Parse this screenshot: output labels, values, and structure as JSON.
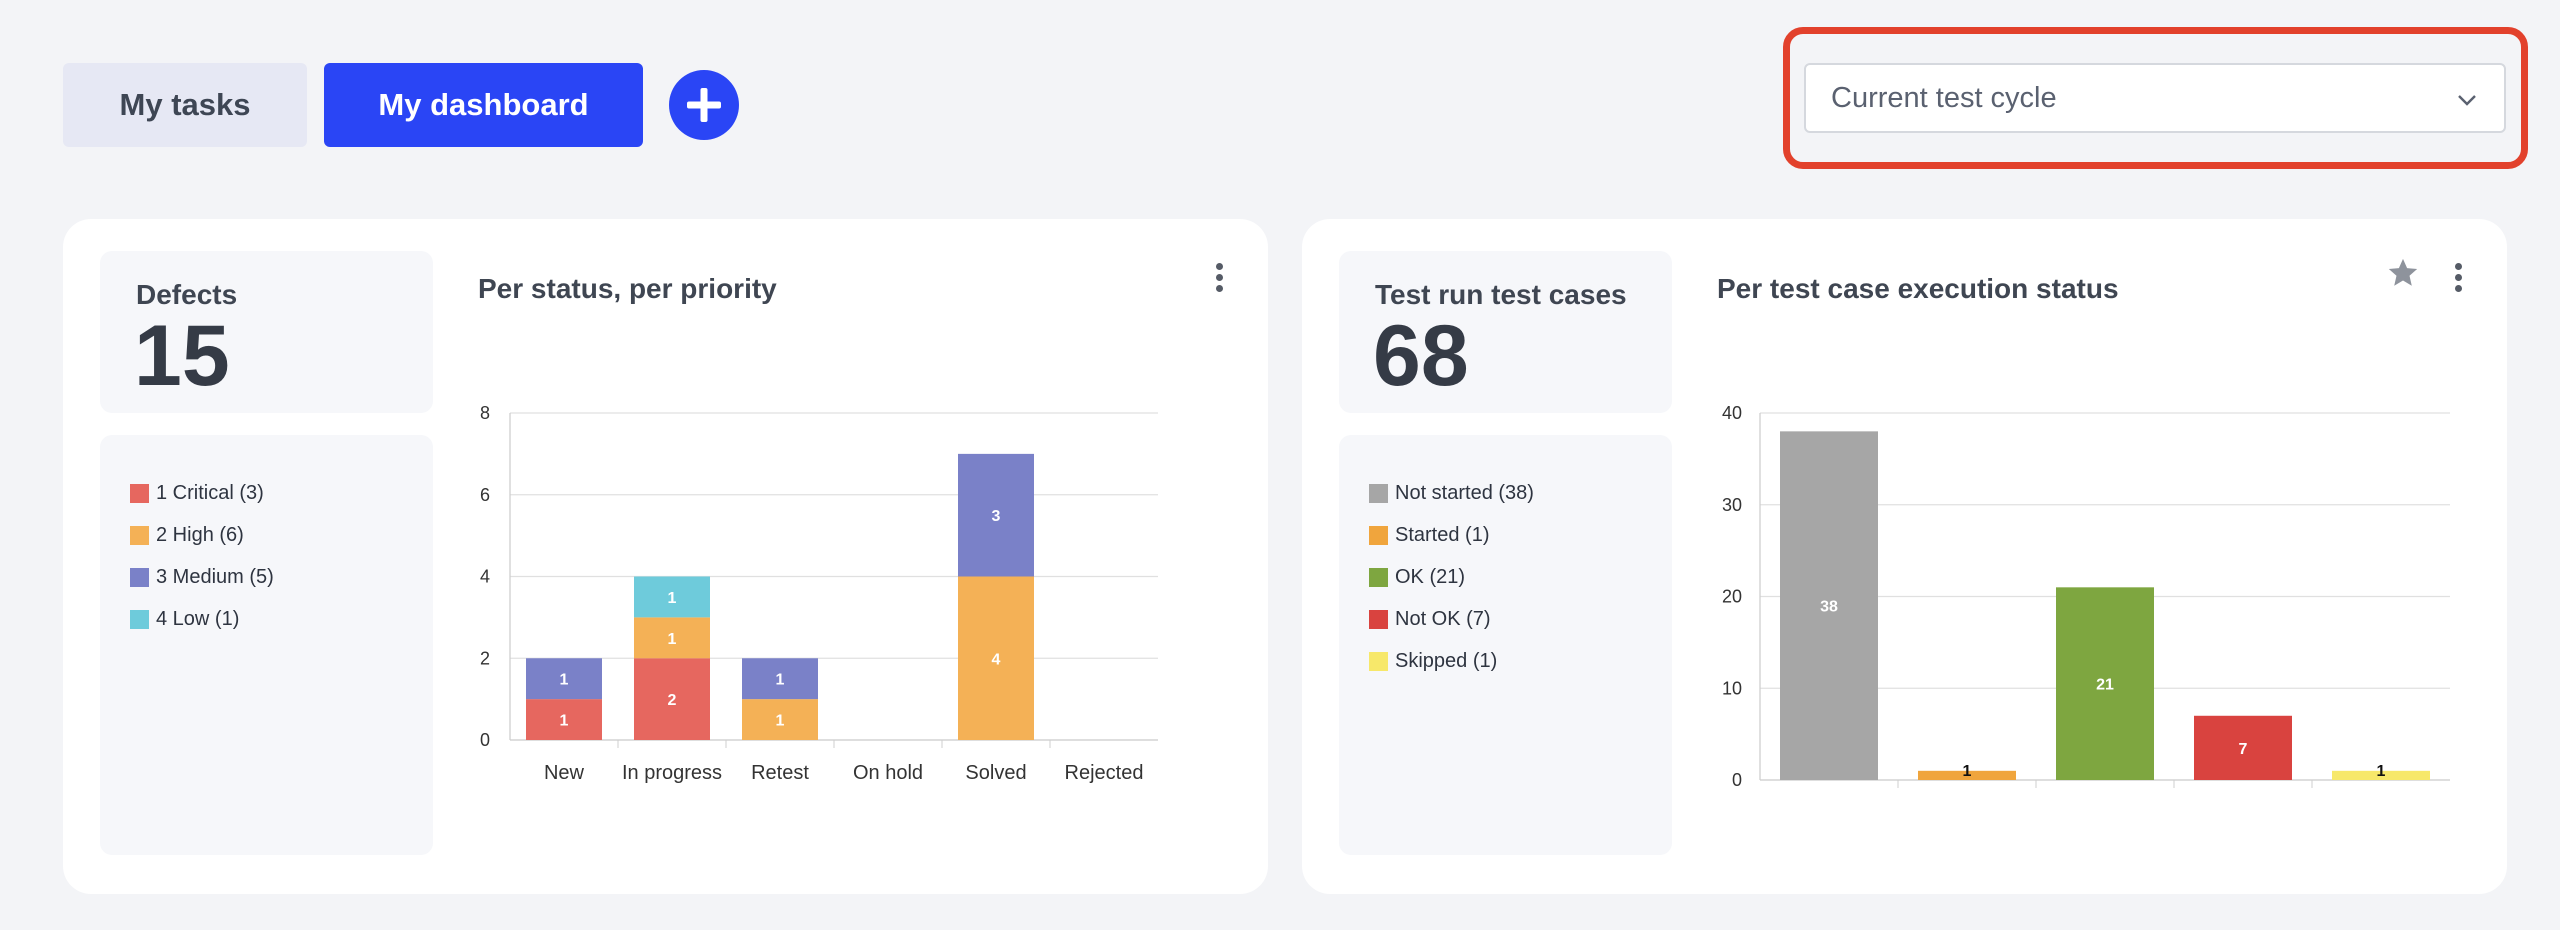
{
  "tabs": {
    "my_tasks": "My tasks",
    "my_dashboard": "My dashboard"
  },
  "add_button_icon": "plus-icon",
  "cycle_select": {
    "value": "Current test cycle",
    "icon": "chevron-down-icon"
  },
  "defects_card": {
    "stat_label": "Defects",
    "stat_value": "15",
    "chart_title": "Per status, per priority",
    "legend": [
      {
        "label": "1 Critical (3)",
        "color": "#e6675f"
      },
      {
        "label": "2 High (6)",
        "color": "#f4b156"
      },
      {
        "label": "3 Medium (5)",
        "color": "#7a81c8"
      },
      {
        "label": "4 Low (1)",
        "color": "#6ecbdb"
      }
    ]
  },
  "testrun_card": {
    "stat_label": "Test run test cases",
    "stat_value": "68",
    "chart_title": "Per test case execution status",
    "legend": [
      {
        "label": "Not started (38)",
        "color": "#a6a6a6"
      },
      {
        "label": "Started (1)",
        "color": "#f0a53d"
      },
      {
        "label": "OK (21)",
        "color": "#7ea640"
      },
      {
        "label": "Not OK (7)",
        "color": "#d9433f"
      },
      {
        "label": "Skipped (1)",
        "color": "#f7e86a"
      }
    ]
  },
  "chart_data": [
    {
      "type": "bar",
      "stacked": true,
      "title": "Per status, per priority",
      "categories": [
        "New",
        "In progress",
        "Retest",
        "On hold",
        "Solved",
        "Rejected"
      ],
      "ylim": [
        0,
        8
      ],
      "yticks": [
        0,
        2,
        4,
        6,
        8
      ],
      "grid": true,
      "series": [
        {
          "name": "1 Critical",
          "color": "#e6675f",
          "values": [
            1,
            2,
            0,
            0,
            0,
            0
          ]
        },
        {
          "name": "2 High",
          "color": "#f4b156",
          "values": [
            0,
            1,
            1,
            0,
            4,
            0
          ]
        },
        {
          "name": "3 Medium",
          "color": "#7a81c8",
          "values": [
            1,
            0,
            1,
            0,
            3,
            0
          ]
        },
        {
          "name": "4 Low",
          "color": "#6ecbdb",
          "values": [
            0,
            1,
            0,
            0,
            0,
            0
          ]
        }
      ]
    },
    {
      "type": "bar",
      "title": "Per test case execution status",
      "categories": [
        "Not started",
        "Started",
        "OK",
        "Not OK",
        "Skipped"
      ],
      "values": [
        38,
        1,
        21,
        7,
        1
      ],
      "colors": [
        "#a6a6a6",
        "#f0a53d",
        "#7ea640",
        "#d9433f",
        "#f7e86a"
      ],
      "ylim": [
        0,
        40
      ],
      "yticks": [
        0,
        10,
        20,
        30,
        40
      ],
      "grid": true
    }
  ]
}
